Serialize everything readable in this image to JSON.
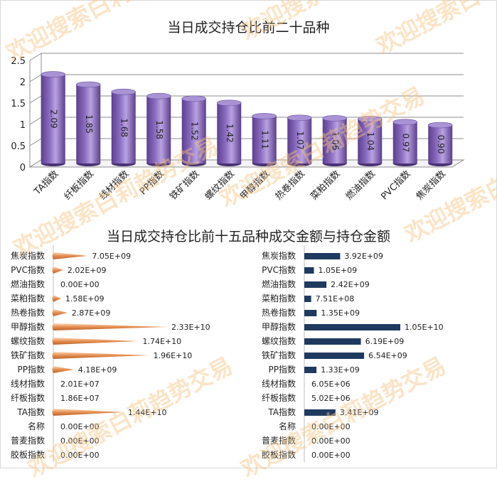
{
  "watermark": "欢迎搜索白莉趋势交易",
  "chart_data": [
    {
      "type": "bar",
      "title": "当日成交持仓比前二十品种",
      "categories": [
        "TA指数",
        "纤板指数",
        "线材指数",
        "PP指数",
        "铁矿指数",
        "螺纹指数",
        "甲醇指数",
        "热卷指数",
        "菜粕指数",
        "燃油指数",
        "PVC指数",
        "焦炭指数"
      ],
      "values": [
        2.09,
        1.85,
        1.68,
        1.58,
        1.52,
        1.42,
        1.11,
        1.07,
        1.06,
        1.04,
        0.97,
        0.9
      ],
      "value_labels": [
        "2.09",
        "1.85",
        "1.68",
        "1.58",
        "1.52",
        "1.42",
        "1.11",
        "1.07",
        "1.06",
        "1.04",
        "0.97",
        "0.90"
      ],
      "yticks": [
        "0",
        "0.5",
        "1",
        "1.5",
        "2",
        "2.5"
      ],
      "ylim": [
        0,
        2.5
      ],
      "bar_color": "#8a6cc0"
    },
    {
      "type": "bar",
      "orientation": "horizontal",
      "title": "当日成交持仓比前十五品种成交金额与持仓金额",
      "categories": [
        "焦炭指数",
        "PVC指数",
        "燃油指数",
        "菜粕指数",
        "热卷指数",
        "甲醇指数",
        "螺纹指数",
        "铁矿指数",
        "PP指数",
        "线材指数",
        "纤板指数",
        "TA指数",
        "名称",
        "普麦指数",
        "胶板指数"
      ],
      "values": [
        7050000000.0,
        2020000000.0,
        0,
        1580000000.0,
        2870000000.0,
        23300000000.0,
        17400000000.0,
        19600000000.0,
        4180000000.0,
        20100000.0,
        18600000.0,
        14400000000.0,
        0,
        0,
        0
      ],
      "value_labels": [
        "7.05E+09",
        "2.02E+09",
        "0.00E+00",
        "1.58E+09",
        "2.87E+09",
        "2.33E+10",
        "1.74E+10",
        "1.96E+10",
        "4.18E+09",
        "2.01E+07",
        "1.86E+07",
        "1.44E+10",
        "0.00E+00",
        "0.00E+00",
        "0.00E+00"
      ],
      "xlim": [
        0,
        23300000000.0
      ],
      "bar_color": "#e8a070"
    },
    {
      "type": "bar",
      "orientation": "horizontal",
      "categories": [
        "焦炭指数",
        "PVC指数",
        "燃油指数",
        "菜粕指数",
        "热卷指数",
        "甲醇指数",
        "螺纹指数",
        "铁矿指数",
        "PP指数",
        "线材指数",
        "纤板指数",
        "TA指数",
        "名称",
        "普麦指数",
        "胶板指数"
      ],
      "values": [
        3920000000.0,
        1050000000.0,
        2420000000.0,
        751000000.0,
        1350000000.0,
        10500000000.0,
        6190000000.0,
        6540000000.0,
        1330000000.0,
        6050000.0,
        5020000.0,
        3410000000.0,
        0,
        0,
        0
      ],
      "value_labels": [
        "3.92E+09",
        "1.05E+09",
        "2.42E+09",
        "7.51E+08",
        "1.35E+09",
        "1.05E+10",
        "6.19E+09",
        "6.54E+09",
        "1.33E+09",
        "6.05E+06",
        "5.02E+06",
        "3.41E+09",
        "0.00E+00",
        "0.00E+00",
        "0.00E+00"
      ],
      "xlim": [
        0,
        10500000000.0
      ],
      "bar_color": "#1f3a5f"
    }
  ]
}
